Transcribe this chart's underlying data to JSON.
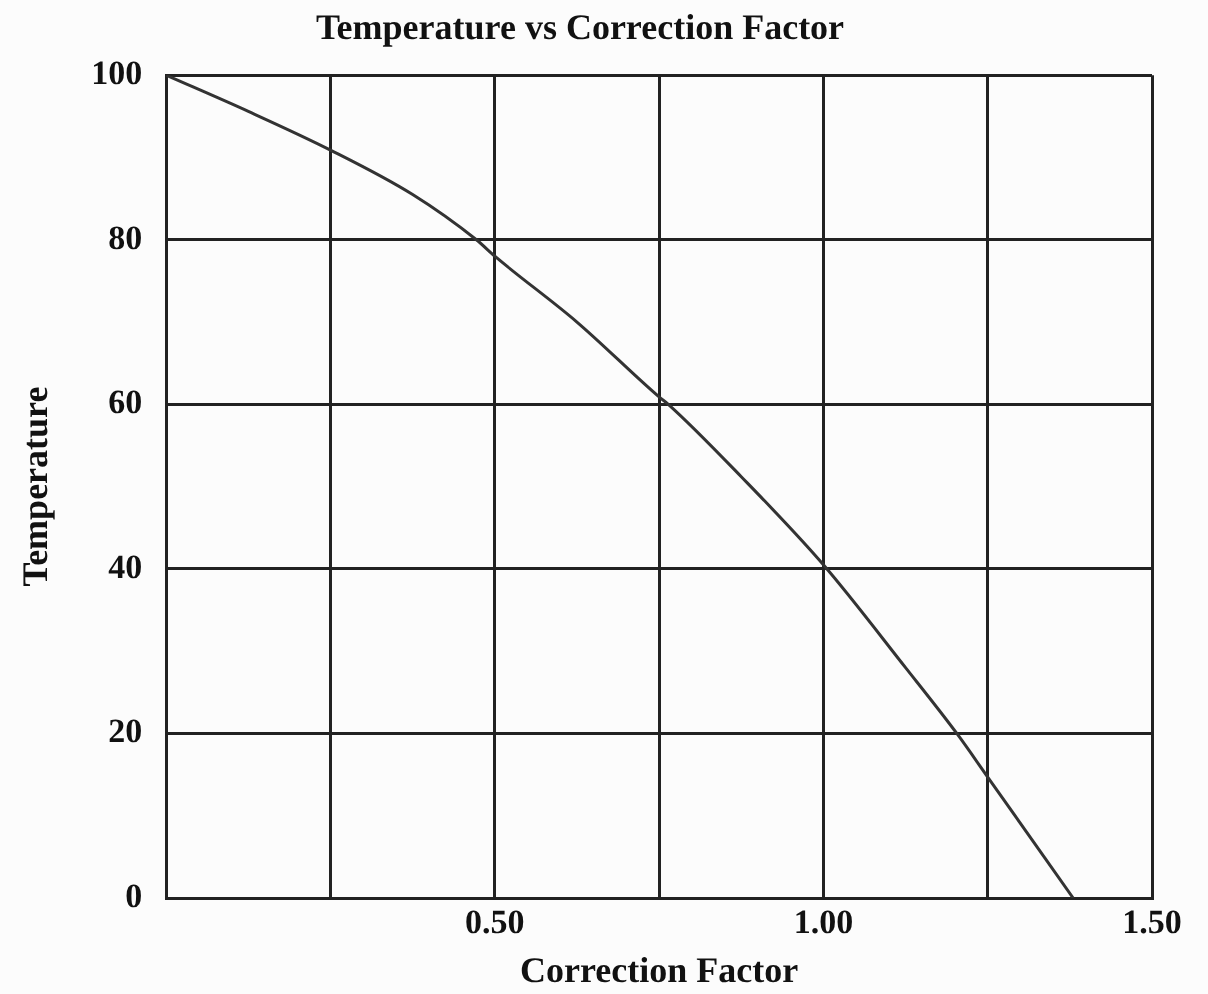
{
  "chart_data": {
    "type": "line",
    "title": "Temperature vs Correction Factor",
    "xlabel": "Correction Factor",
    "ylabel": "Temperature",
    "series": [
      {
        "color": "#333333",
        "x": [
          0,
          0.125,
          0.25,
          0.375,
          0.472,
          0.5,
          0.625,
          0.75,
          0.764,
          0.875,
          1.0,
          1.125,
          1.203,
          1.25,
          1.38
        ],
        "values": [
          100,
          95.6,
          90.9,
          85.5,
          80,
          78,
          70,
          60.9,
          60,
          51.2,
          40.5,
          28,
          20,
          14.7,
          0
        ]
      }
    ],
    "xlim": [
      0,
      1.5
    ],
    "xticks": [
      {
        "value": 0,
        "label": null
      },
      {
        "value": 0.25,
        "label": null
      },
      {
        "value": 0.5,
        "label": "0.50"
      },
      {
        "value": 0.75,
        "label": null
      },
      {
        "value": 1.0,
        "label": "1.00"
      },
      {
        "value": 1.25,
        "label": null
      },
      {
        "value": 1.5,
        "label": "1.50"
      }
    ],
    "ylim": [
      0,
      100
    ],
    "yticks": [
      0,
      20,
      40,
      60,
      80,
      100
    ],
    "grid": true,
    "legend": false,
    "marker": "none",
    "line_style": "solid"
  }
}
